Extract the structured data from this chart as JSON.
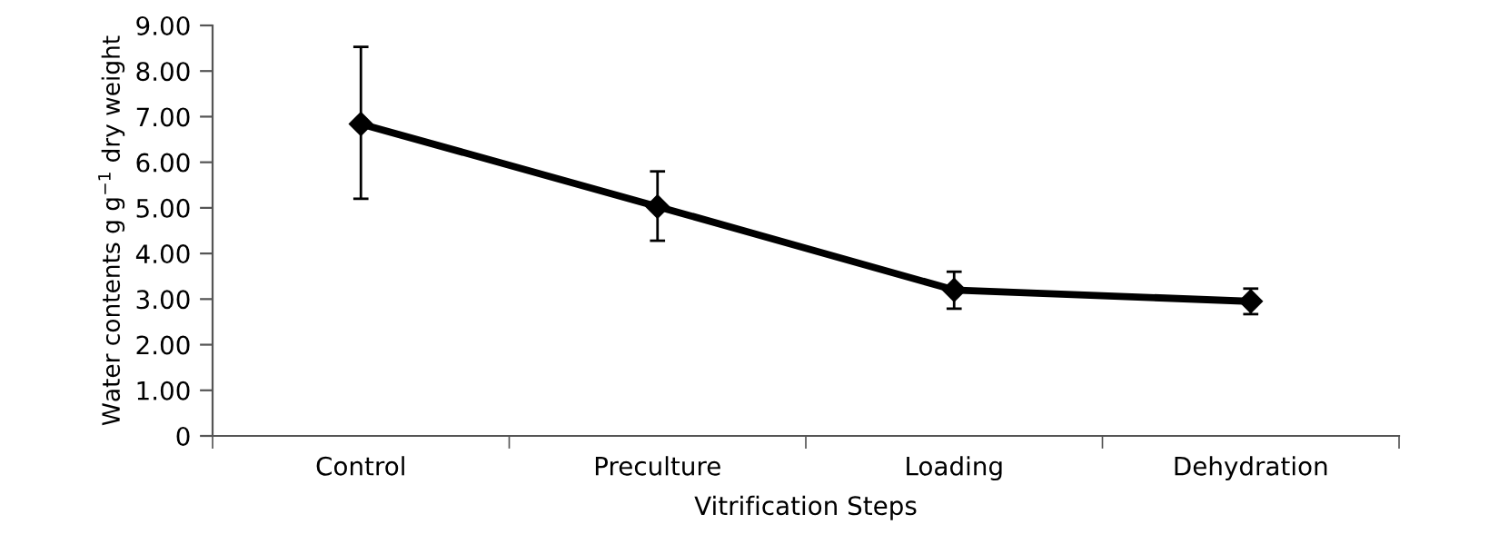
{
  "chart_data": {
    "type": "line",
    "xlabel": "Vitrification Steps",
    "ylabel": "Water contents g g$^{−1}$ dry weight",
    "categories": [
      "Control",
      "Preculture",
      "Loading",
      "Dehydration"
    ],
    "series": [
      {
        "color": "#000000",
        "values": [
          6.84,
          5.03,
          3.2,
          2.95
        ],
        "errors": [
          [
            5.2,
            8.53
          ],
          [
            4.28,
            5.8
          ],
          [
            2.79,
            3.6
          ],
          [
            2.67,
            3.23
          ]
        ]
      }
    ],
    "ylim": [
      0,
      9
    ],
    "yticks": [
      0,
      {
        "value": 1,
        "label": "1.00"
      },
      {
        "value": 2,
        "label": "2.00"
      },
      {
        "value": 3,
        "label": "3.00"
      },
      {
        "value": 4,
        "label": "4.00"
      },
      {
        "value": 5,
        "label": "5.00"
      },
      {
        "value": 6,
        "label": "6.00"
      },
      {
        "value": 7,
        "label": "7.00"
      },
      {
        "value": 8,
        "label": "8.00"
      },
      {
        "value": 9,
        "label": "9.00"
      }
    ],
    "marker": "diamond",
    "line_style": "solid",
    "grid": false,
    "legend": false
  }
}
